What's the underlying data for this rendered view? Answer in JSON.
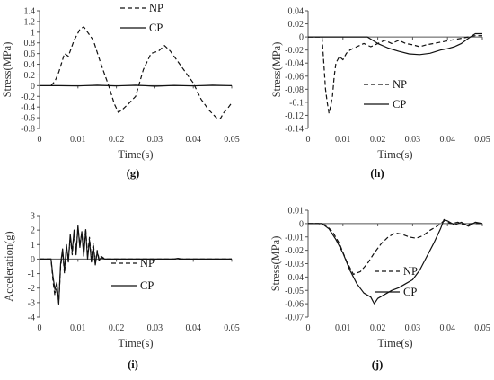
{
  "chart_data": [
    {
      "type": "line",
      "caption": "(g)",
      "xlabel": "Time(s)",
      "ylabel": "Stress(MPa)",
      "xlim": [
        0,
        0.05
      ],
      "ylim": [
        -0.8,
        1.4
      ],
      "xticks": [
        "0",
        "0.01",
        "0.02",
        "0.03",
        "0.04",
        "0.05"
      ],
      "yticks": [
        "1.4",
        "1.2",
        "1",
        "0.8",
        "0.6",
        "0.4",
        "0.2",
        "0",
        "-0.2",
        "-0.4",
        "-0.6",
        "-0.8"
      ],
      "legend_position": "top-right",
      "series": [
        {
          "name": "NP",
          "style": "dashed",
          "x": [
            0.003,
            0.004,
            0.005,
            0.0065,
            0.0075,
            0.009,
            0.0105,
            0.0115,
            0.0125,
            0.014,
            0.016,
            0.018,
            0.0195,
            0.0205,
            0.0215,
            0.023,
            0.025,
            0.027,
            0.029,
            0.031,
            0.0325,
            0.034,
            0.036,
            0.038,
            0.04,
            0.042,
            0.044,
            0.046,
            0.047,
            0.048,
            0.049,
            0.05
          ],
          "y": [
            0.0,
            0.08,
            0.25,
            0.6,
            0.55,
            0.85,
            1.05,
            1.1,
            1.0,
            0.85,
            0.4,
            0.0,
            -0.35,
            -0.5,
            -0.45,
            -0.35,
            -0.2,
            0.3,
            0.6,
            0.65,
            0.75,
            0.65,
            0.45,
            0.25,
            0.05,
            -0.25,
            -0.45,
            -0.6,
            -0.62,
            -0.5,
            -0.42,
            -0.32
          ]
        },
        {
          "name": "CP",
          "style": "solid",
          "x": [
            0,
            0.005,
            0.01,
            0.015,
            0.02,
            0.025,
            0.03,
            0.035,
            0.04,
            0.045,
            0.05
          ],
          "y": [
            0.0,
            0.0,
            -0.005,
            0.01,
            -0.005,
            0.01,
            -0.01,
            0.005,
            -0.005,
            0.01,
            0.0
          ]
        }
      ]
    },
    {
      "type": "line",
      "caption": "(h)",
      "xlabel": "Time(s)",
      "ylabel": "Stress(MPa)",
      "xlim": [
        0,
        0.05
      ],
      "ylim": [
        -0.14,
        0.04
      ],
      "xticks": [
        "0",
        "0.01",
        "0.02",
        "0.03",
        "0.04",
        "0.05"
      ],
      "yticks": [
        "0.04",
        "0.02",
        "0",
        "-0.02",
        "-0.04",
        "-0.06",
        "-0.08",
        "-0.1",
        "-0.12",
        "-0.14"
      ],
      "legend_position": "right",
      "series": [
        {
          "name": "NP",
          "style": "dashed",
          "x": [
            0,
            0.004,
            0.0045,
            0.005,
            0.0055,
            0.006,
            0.0065,
            0.007,
            0.0075,
            0.008,
            0.009,
            0.01,
            0.011,
            0.012,
            0.014,
            0.016,
            0.018,
            0.02,
            0.022,
            0.024,
            0.026,
            0.028,
            0.03,
            0.032,
            0.034,
            0.036,
            0.038,
            0.04,
            0.042,
            0.044,
            0.046,
            0.048,
            0.05
          ],
          "y": [
            0.0,
            0.0,
            -0.04,
            -0.08,
            -0.1,
            -0.117,
            -0.105,
            -0.09,
            -0.06,
            -0.04,
            -0.03,
            -0.035,
            -0.025,
            -0.02,
            -0.015,
            -0.01,
            -0.015,
            -0.01,
            -0.005,
            -0.01,
            -0.005,
            -0.01,
            -0.012,
            -0.015,
            -0.012,
            -0.01,
            -0.008,
            -0.006,
            -0.004,
            -0.002,
            0.0,
            0.002,
            0.002
          ]
        },
        {
          "name": "CP",
          "style": "solid",
          "x": [
            0,
            0.005,
            0.01,
            0.015,
            0.017,
            0.02,
            0.023,
            0.026,
            0.029,
            0.032,
            0.035,
            0.038,
            0.04,
            0.042,
            0.044,
            0.046,
            0.048,
            0.05
          ],
          "y": [
            0.0,
            0.0,
            0.0,
            0.0,
            0.0,
            -0.01,
            -0.017,
            -0.022,
            -0.026,
            -0.027,
            -0.025,
            -0.02,
            -0.018,
            -0.015,
            -0.01,
            -0.002,
            0.005,
            0.005
          ]
        }
      ]
    },
    {
      "type": "line",
      "caption": "(i)",
      "xlabel": "Time(s)",
      "ylabel": "Acceleration(g)",
      "xlim": [
        0,
        0.05
      ],
      "ylim": [
        -4,
        3
      ],
      "xticks": [
        "0",
        "0.01",
        "0.02",
        "0.03",
        "0.04",
        "0.05"
      ],
      "yticks": [
        "3",
        "2",
        "1",
        "0",
        "-1",
        "-2",
        "-3",
        "-4"
      ],
      "legend_position": "bottom-right",
      "series": [
        {
          "name": "NP",
          "style": "dashed",
          "x": [
            0,
            0.003,
            0.0035,
            0.004,
            0.0045,
            0.005,
            0.0055,
            0.006,
            0.0065,
            0.007,
            0.0075,
            0.008,
            0.0085,
            0.009,
            0.0095,
            0.01,
            0.0105,
            0.011,
            0.0115,
            0.012,
            0.0125,
            0.013,
            0.0135,
            0.014,
            0.0145,
            0.015,
            0.0155,
            0.016,
            0.017,
            0.02,
            0.05
          ],
          "y": [
            0.0,
            0.0,
            -1.5,
            -2.5,
            -1.8,
            -3.0,
            -0.5,
            0.5,
            -1.0,
            0.8,
            0.0,
            1.5,
            0.3,
            1.8,
            0.5,
            2.2,
            1.0,
            1.8,
            0.4,
            2.1,
            0.2,
            1.5,
            0.0,
            1.1,
            -0.3,
            0.6,
            0.0,
            0.2,
            0.0,
            0.0,
            0.0
          ]
        },
        {
          "name": "CP",
          "style": "solid",
          "x": [
            0,
            0.003,
            0.0035,
            0.004,
            0.0045,
            0.005,
            0.0055,
            0.006,
            0.0065,
            0.007,
            0.0075,
            0.008,
            0.0085,
            0.009,
            0.0095,
            0.01,
            0.0105,
            0.011,
            0.0115,
            0.012,
            0.0125,
            0.013,
            0.0135,
            0.014,
            0.0145,
            0.015,
            0.0155,
            0.016,
            0.017,
            0.02,
            0.035,
            0.036,
            0.037,
            0.05
          ],
          "y": [
            0.0,
            0.0,
            -1.2,
            -2.1,
            -1.6,
            -3.1,
            -0.3,
            0.7,
            -0.8,
            1.0,
            -0.2,
            1.7,
            0.5,
            2.0,
            0.3,
            2.3,
            0.8,
            1.9,
            0.2,
            2.0,
            0.0,
            1.3,
            -0.2,
            0.9,
            -0.4,
            0.5,
            -0.1,
            0.1,
            0.0,
            0.0,
            0.0,
            0.05,
            0.0,
            0.0
          ]
        }
      ]
    },
    {
      "type": "line",
      "caption": "(j)",
      "xlabel": "Time(s)",
      "ylabel": "Stress(MPa)",
      "xlim": [
        0,
        0.05
      ],
      "ylim": [
        -0.07,
        0.01
      ],
      "xticks": [
        "0",
        "0.01",
        "0.02",
        "0.03",
        "0.04",
        "0.05"
      ],
      "yticks": [
        "0.01",
        "0",
        "-0.01",
        "-0.02",
        "-0.03",
        "-0.04",
        "-0.05",
        "-0.06",
        "-0.07"
      ],
      "legend_position": "bottom-right",
      "series": [
        {
          "name": "NP",
          "style": "dashed",
          "x": [
            0,
            0.003,
            0.005,
            0.007,
            0.009,
            0.011,
            0.013,
            0.015,
            0.017,
            0.019,
            0.021,
            0.023,
            0.025,
            0.027,
            0.029,
            0.031,
            0.033,
            0.035,
            0.037,
            0.039,
            0.041,
            0.043,
            0.045,
            0.047,
            0.05
          ],
          "y": [
            0.0,
            0.0,
            -0.001,
            -0.006,
            -0.015,
            -0.028,
            -0.038,
            -0.036,
            -0.03,
            -0.022,
            -0.015,
            -0.01,
            -0.007,
            -0.008,
            -0.01,
            -0.011,
            -0.009,
            -0.005,
            -0.002,
            0.002,
            0.0,
            0.001,
            -0.001,
            0.0,
            0.0
          ]
        },
        {
          "name": "CP",
          "style": "solid",
          "x": [
            0,
            0.004,
            0.006,
            0.008,
            0.01,
            0.012,
            0.014,
            0.016,
            0.018,
            0.019,
            0.02,
            0.022,
            0.024,
            0.026,
            0.028,
            0.03,
            0.032,
            0.034,
            0.036,
            0.038,
            0.039,
            0.04,
            0.042,
            0.044,
            0.046,
            0.048,
            0.05
          ],
          "y": [
            0.0,
            0.0,
            -0.004,
            -0.012,
            -0.022,
            -0.035,
            -0.045,
            -0.052,
            -0.055,
            -0.06,
            -0.056,
            -0.053,
            -0.05,
            -0.048,
            -0.045,
            -0.042,
            -0.035,
            -0.025,
            -0.015,
            -0.004,
            0.003,
            0.002,
            -0.001,
            0.001,
            -0.002,
            0.001,
            0.0
          ]
        }
      ]
    }
  ]
}
